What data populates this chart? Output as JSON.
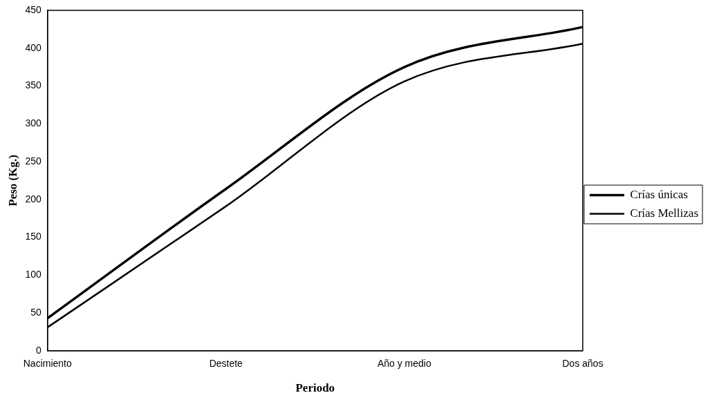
{
  "chart_data": {
    "type": "line",
    "xlabel": "Periodo",
    "ylabel": "Peso (Kg.)",
    "categories": [
      "Nacimiento",
      "Destete",
      "Año y medio",
      "Dos años"
    ],
    "series": [
      {
        "name": "Crías únicas",
        "color": "#000000",
        "values": [
          43,
          214,
          375,
          428
        ]
      },
      {
        "name": "Crías Mellizas",
        "color": "#000000",
        "values": [
          31,
          191,
          356,
          406
        ]
      }
    ],
    "ylim": [
      0,
      450
    ],
    "yticks": [
      0,
      50,
      100,
      150,
      200,
      250,
      300,
      350,
      400,
      450
    ],
    "grid": false,
    "legend": "right",
    "marker": "none",
    "line_style": "solid"
  }
}
